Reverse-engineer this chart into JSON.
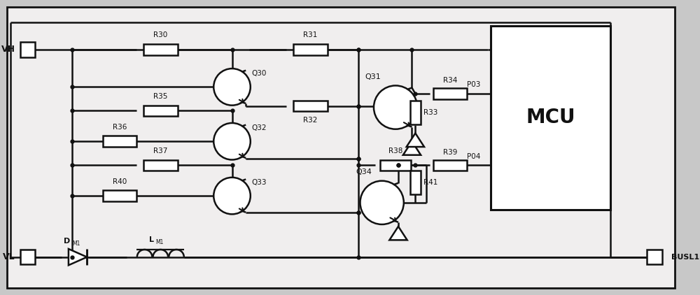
{
  "bg_color": "#c8c8c8",
  "inner_bg": "#f0eeee",
  "line_color": "#111111",
  "lw": 1.8,
  "fig_width": 10.0,
  "fig_height": 4.22,
  "labels": {
    "VH": "VH",
    "VL": "VL",
    "MCU": "MCU",
    "BUSL1": "BUSL1",
    "R30": "R30",
    "R31": "R31",
    "R32": "R32",
    "R33": "R33",
    "R34": "R34",
    "R35": "R35",
    "R36": "R36",
    "R37": "R37",
    "R38": "R38",
    "R39": "R39",
    "R40": "R40",
    "R41": "R41",
    "Q30": "Q30",
    "Q31": "Q31",
    "Q32": "Q32",
    "Q33": "Q33",
    "Q34": "Q34",
    "DM1": "D",
    "DM1sub": "M1",
    "LM1": "L",
    "LM1sub": "M1",
    "P03": "P03",
    "P04": "P04"
  }
}
